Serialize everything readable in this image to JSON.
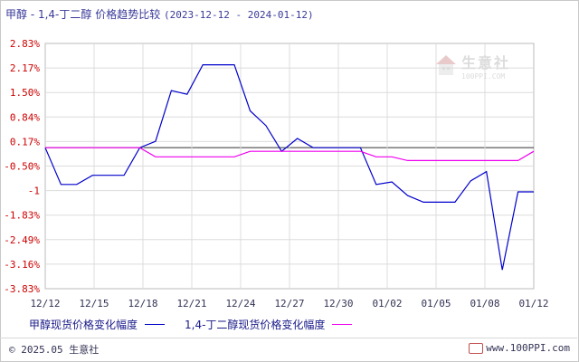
{
  "title": {
    "main": "甲醇 - 1,4-丁二醇 价格趋势比较",
    "range": "(2023-12-12 - 2024-01-12)"
  },
  "watermark": {
    "name": "生意社",
    "site": "100PPI.COM"
  },
  "footer": {
    "copyright": "© 2025.05 生意社",
    "website": "www.100PPI.com"
  },
  "colors": {
    "series1": "#0000cc",
    "series2": "#ee00ee",
    "ytick": "#cc0000",
    "xtick": "#333355",
    "grid": "#dcdcdc",
    "zero_line": "#333333"
  },
  "chart_data": {
    "type": "line",
    "title": "甲醇 - 1,4-丁二醇 价格趋势比较",
    "xlabel": "",
    "ylabel": "",
    "x_start": "2023-12-12",
    "x_end": "2024-01-12",
    "x_ticks": [
      "12/12",
      "12/15",
      "12/18",
      "12/21",
      "12/24",
      "12/27",
      "12/30",
      "01/02",
      "01/05",
      "01/08",
      "01/12"
    ],
    "y_ticks": [
      "2.83%",
      "2.17%",
      "1.50%",
      "0.84%",
      "0.17%",
      "-0.50%",
      "-1",
      "-1.83%",
      "-2.49%",
      "-3.16%",
      "-3.83%"
    ],
    "ylim": [
      -3.83,
      2.83
    ],
    "grid": true,
    "legend_position": "bottom",
    "series": [
      {
        "name": "甲醇现货价格变化幅度",
        "points": [
          [
            "2023-12-12",
            0.0
          ],
          [
            "2023-12-13",
            -1.0
          ],
          [
            "2023-12-14",
            -1.0
          ],
          [
            "2023-12-15",
            -0.75
          ],
          [
            "2023-12-16",
            -0.75
          ],
          [
            "2023-12-17",
            -0.75
          ],
          [
            "2023-12-18",
            0.0
          ],
          [
            "2023-12-19",
            0.17
          ],
          [
            "2023-12-20",
            1.55
          ],
          [
            "2023-12-21",
            1.45
          ],
          [
            "2023-12-22",
            2.25
          ],
          [
            "2023-12-23",
            2.25
          ],
          [
            "2023-12-24",
            2.25
          ],
          [
            "2023-12-25",
            1.0
          ],
          [
            "2023-12-26",
            0.6
          ],
          [
            "2023-12-27",
            -0.1
          ],
          [
            "2023-12-28",
            0.25
          ],
          [
            "2023-12-29",
            0.0
          ],
          [
            "2023-12-30",
            0.0
          ],
          [
            "2023-12-31",
            0.0
          ],
          [
            "2024-01-01",
            0.0
          ],
          [
            "2024-01-02",
            -1.0
          ],
          [
            "2024-01-03",
            -0.93
          ],
          [
            "2024-01-04",
            -1.3
          ],
          [
            "2024-01-05",
            -1.48
          ],
          [
            "2024-01-06",
            -1.48
          ],
          [
            "2024-01-07",
            -1.48
          ],
          [
            "2024-01-08",
            -0.9
          ],
          [
            "2024-01-09",
            -0.65
          ],
          [
            "2024-01-10",
            -3.32
          ],
          [
            "2024-01-11",
            -1.2
          ],
          [
            "2024-01-12",
            -1.2
          ]
        ]
      },
      {
        "name": "1,4-丁二醇现货价格变化幅度",
        "points": [
          [
            "2023-12-12",
            0.0
          ],
          [
            "2023-12-18",
            0.0
          ],
          [
            "2023-12-19",
            -0.25
          ],
          [
            "2023-12-24",
            -0.25
          ],
          [
            "2023-12-25",
            -0.1
          ],
          [
            "2023-12-29",
            -0.1
          ],
          [
            "2024-01-01",
            -0.1
          ],
          [
            "2024-01-02",
            -0.25
          ],
          [
            "2024-01-03",
            -0.25
          ],
          [
            "2024-01-04",
            -0.35
          ],
          [
            "2024-01-11",
            -0.35
          ],
          [
            "2024-01-12",
            -0.1
          ]
        ]
      }
    ]
  }
}
